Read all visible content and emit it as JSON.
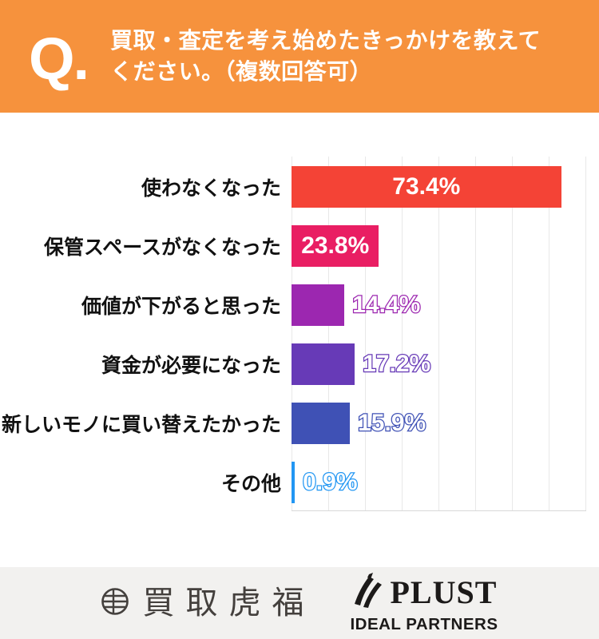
{
  "header": {
    "q_mark": "Q.",
    "title_line1": "買取・査定を考え始めたきっかけを教えて",
    "title_line2": "ください。（複数回答可）",
    "bg_color": "#F6923D"
  },
  "chart_data": {
    "type": "bar",
    "orientation": "horizontal",
    "title": "買取・査定を考え始めたきっかけ",
    "categories": [
      "使わなくなった",
      "保管スペースがなくなった",
      "価値が下がると思った",
      "資金が必要になった",
      "新しいモノに買い替えたかった",
      "その他"
    ],
    "values": [
      73.4,
      23.8,
      14.4,
      17.2,
      15.9,
      0.9
    ],
    "value_labels": [
      "73.4%",
      "23.8%",
      "14.4%",
      "17.2%",
      "15.9%",
      "0.9%"
    ],
    "colors": [
      "#F44336",
      "#E91E63",
      "#9C27B0",
      "#673AB7",
      "#3F51B5",
      "#2196F3"
    ],
    "label_inside": [
      true,
      true,
      false,
      false,
      false,
      false
    ],
    "xlabel": "",
    "ylabel": "",
    "xlim": [
      0,
      80
    ],
    "gridline_step": 10,
    "grid": true,
    "legend": false
  },
  "footer": {
    "brand_left": "買取虎福",
    "brand_right_name": "PLUST",
    "brand_right_sub": "IDEAL PARTNERS",
    "bg_color": "#F2F1EF"
  }
}
